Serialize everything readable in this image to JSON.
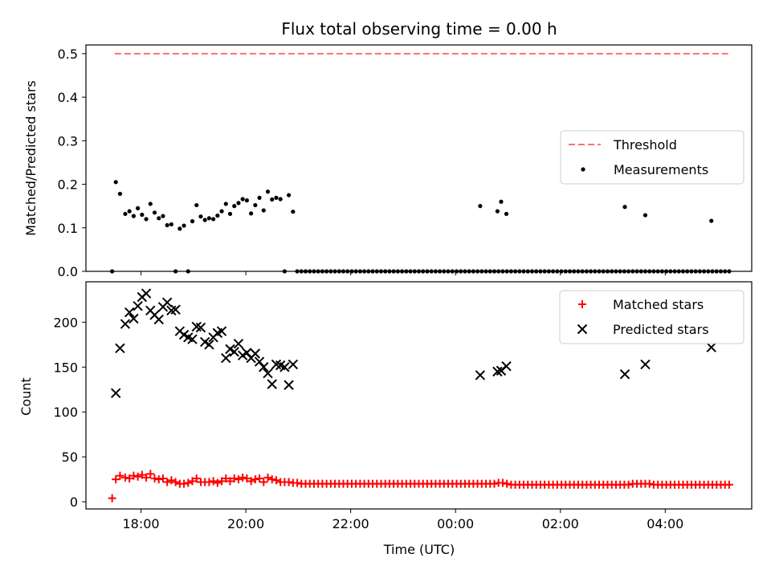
{
  "chart_data": [
    {
      "type": "scatter",
      "title": "Flux total observing time = 0.00 h",
      "xlabel": "",
      "ylabel": "Matched/Predicted stars",
      "xlim": [
        16.95,
        29.65
      ],
      "ylim": [
        0,
        0.52
      ],
      "yticks": [
        0,
        0.1,
        0.2,
        0.3,
        0.4,
        0.5
      ],
      "ytick_labels": [
        "0.0",
        "0.1",
        "0.2",
        "0.3",
        "0.4",
        "0.5"
      ],
      "legend": "center-right",
      "series": [
        {
          "name": "Threshold",
          "kind": "dashed-line",
          "color": "#ff7070",
          "x": [
            17.5,
            29.2
          ],
          "y": [
            0.5,
            0.5
          ]
        },
        {
          "name": "Measurements",
          "kind": "dot",
          "color": "#000000",
          "x": [
            17.45,
            17.52,
            17.6,
            17.7,
            17.78,
            17.86,
            17.94,
            18.02,
            18.1,
            18.18,
            18.26,
            18.34,
            18.42,
            18.5,
            18.58,
            18.66,
            18.74,
            18.82,
            18.9,
            18.98,
            19.06,
            19.14,
            19.22,
            19.3,
            19.38,
            19.46,
            19.54,
            19.62,
            19.7,
            19.78,
            19.86,
            19.94,
            20.02,
            20.1,
            20.18,
            20.26,
            20.34,
            20.42,
            20.5,
            20.58,
            20.66,
            20.74,
            20.82,
            20.9,
            20.98,
            21.06,
            21.14,
            21.22,
            21.3,
            21.38,
            21.46,
            21.54,
            21.62,
            21.7,
            21.78,
            21.86,
            21.94,
            22.02,
            22.1,
            22.18,
            22.26,
            22.34,
            22.42,
            22.5,
            22.58,
            22.66,
            22.74,
            22.82,
            22.9,
            22.98,
            23.06,
            23.14,
            23.22,
            23.3,
            23.38,
            23.46,
            23.54,
            23.62,
            23.7,
            23.78,
            23.86,
            23.94,
            24.02,
            24.1,
            24.18,
            24.26,
            24.34,
            24.42,
            24.5,
            24.58,
            24.66,
            24.74,
            24.82,
            24.9,
            24.98,
            25.06,
            25.14,
            25.22,
            25.3,
            25.38,
            25.46,
            25.54,
            25.62,
            25.7,
            25.78,
            25.86,
            25.94,
            26.02,
            26.1,
            26.18,
            26.26,
            26.34,
            26.42,
            26.5,
            26.58,
            26.66,
            26.74,
            26.82,
            26.9,
            26.98,
            27.06,
            27.14,
            27.22,
            27.3,
            27.38,
            27.46,
            27.54,
            27.62,
            27.7,
            27.78,
            27.86,
            27.94,
            28.02,
            28.1,
            28.18,
            28.26,
            28.34,
            28.42,
            28.5,
            28.58,
            28.66,
            28.74,
            28.82,
            28.9,
            28.98,
            29.06,
            29.14,
            29.22,
            24.47,
            24.8,
            24.87,
            24.97,
            27.23,
            27.62,
            28.88
          ],
          "y": [
            0.0,
            0.205,
            0.178,
            0.132,
            0.138,
            0.127,
            0.145,
            0.13,
            0.12,
            0.155,
            0.135,
            0.122,
            0.127,
            0.106,
            0.108,
            0.0,
            0.098,
            0.105,
            0.0,
            0.115,
            0.152,
            0.126,
            0.118,
            0.122,
            0.12,
            0.128,
            0.138,
            0.155,
            0.132,
            0.15,
            0.157,
            0.166,
            0.163,
            0.133,
            0.152,
            0.169,
            0.14,
            0.183,
            0.165,
            0.169,
            0.166,
            0.0,
            0.175,
            0.137,
            0.0,
            0.0,
            0.0,
            0.0,
            0.0,
            0.0,
            0.0,
            0.0,
            0.0,
            0.0,
            0.0,
            0.0,
            0.0,
            0.0,
            0.0,
            0.0,
            0.0,
            0.0,
            0.0,
            0.0,
            0.0,
            0.0,
            0.0,
            0.0,
            0.0,
            0.0,
            0.0,
            0.0,
            0.0,
            0.0,
            0.0,
            0.0,
            0.0,
            0.0,
            0.0,
            0.0,
            0.0,
            0.0,
            0.0,
            0.0,
            0.0,
            0.0,
            0.0,
            0.0,
            0.0,
            0.0,
            0.0,
            0.0,
            0.0,
            0.0,
            0.0,
            0.0,
            0.0,
            0.0,
            0.0,
            0.0,
            0.0,
            0.0,
            0.0,
            0.0,
            0.0,
            0.0,
            0.0,
            0.0,
            0.0,
            0.0,
            0.0,
            0.0,
            0.0,
            0.0,
            0.0,
            0.0,
            0.0,
            0.0,
            0.0,
            0.0,
            0.0,
            0.0,
            0.0,
            0.0,
            0.0,
            0.0,
            0.0,
            0.0,
            0.0,
            0.0,
            0.0,
            0.0,
            0.0,
            0.0,
            0.0,
            0.0,
            0.0,
            0.0,
            0.0,
            0.0,
            0.0,
            0.0,
            0.0,
            0.0,
            0.0,
            0.0,
            0.0,
            0.0,
            0.15,
            0.138,
            0.16,
            0.132,
            0.148,
            0.129,
            0.116
          ]
        }
      ]
    },
    {
      "type": "scatter",
      "title": "",
      "xlabel": "Time (UTC)",
      "ylabel": "Count",
      "xlim": [
        16.95,
        29.65
      ],
      "ylim": [
        -8,
        245
      ],
      "yticks": [
        0,
        50,
        100,
        150,
        200
      ],
      "ytick_labels": [
        "0",
        "50",
        "100",
        "150",
        "200"
      ],
      "xticks": [
        18,
        20,
        22,
        24,
        26,
        28
      ],
      "xtick_labels": [
        "18:00",
        "20:00",
        "22:00",
        "00:00",
        "02:00",
        "04:00"
      ],
      "legend": "top-right",
      "series": [
        {
          "name": "Matched stars",
          "kind": "plus",
          "color": "#ff0000",
          "x": [
            17.45,
            17.52,
            17.6,
            17.7,
            17.78,
            17.86,
            17.94,
            18.02,
            18.1,
            18.18,
            18.26,
            18.34,
            18.42,
            18.5,
            18.58,
            18.66,
            18.74,
            18.82,
            18.9,
            18.98,
            19.06,
            19.14,
            19.22,
            19.3,
            19.38,
            19.46,
            19.54,
            19.62,
            19.7,
            19.78,
            19.86,
            19.94,
            20.02,
            20.1,
            20.18,
            20.26,
            20.34,
            20.42,
            20.5,
            20.58,
            20.66,
            20.74,
            20.82,
            20.9,
            20.98,
            21.06,
            21.14,
            21.22,
            21.3,
            21.38,
            21.46,
            21.54,
            21.62,
            21.7,
            21.78,
            21.86,
            21.94,
            22.02,
            22.1,
            22.18,
            22.26,
            22.34,
            22.42,
            22.5,
            22.58,
            22.66,
            22.74,
            22.82,
            22.9,
            22.98,
            23.06,
            23.14,
            23.22,
            23.3,
            23.38,
            23.46,
            23.54,
            23.62,
            23.7,
            23.78,
            23.86,
            23.94,
            24.02,
            24.1,
            24.18,
            24.26,
            24.34,
            24.42,
            24.5,
            24.58,
            24.66,
            24.74,
            24.82,
            24.9,
            24.98,
            25.06,
            25.14,
            25.22,
            25.3,
            25.38,
            25.46,
            25.54,
            25.62,
            25.7,
            25.78,
            25.86,
            25.94,
            26.02,
            26.1,
            26.18,
            26.26,
            26.34,
            26.42,
            26.5,
            26.58,
            26.66,
            26.74,
            26.82,
            26.9,
            26.98,
            27.06,
            27.14,
            27.22,
            27.3,
            27.38,
            27.46,
            27.54,
            27.62,
            27.7,
            27.78,
            27.86,
            27.94,
            28.02,
            28.1,
            28.18,
            28.26,
            28.34,
            28.42,
            28.5,
            28.58,
            28.66,
            28.74,
            28.82,
            28.9,
            28.98,
            29.06,
            29.14,
            29.22
          ],
          "y": [
            4,
            25,
            29,
            27,
            26,
            29,
            28,
            30,
            27,
            31,
            26,
            25,
            26,
            22,
            24,
            22,
            20,
            20,
            21,
            23,
            26,
            22,
            22,
            22,
            23,
            21,
            23,
            26,
            23,
            26,
            25,
            27,
            26,
            23,
            25,
            26,
            22,
            27,
            25,
            24,
            22,
            22,
            22,
            21,
            21,
            20,
            20,
            20,
            20,
            20,
            20,
            20,
            20,
            20,
            20,
            20,
            20,
            20,
            20,
            20,
            20,
            20,
            20,
            20,
            20,
            20,
            20,
            20,
            20,
            20,
            20,
            20,
            20,
            20,
            20,
            20,
            20,
            20,
            20,
            20,
            20,
            20,
            20,
            20,
            20,
            20,
            20,
            20,
            20,
            20,
            20,
            20,
            21,
            21,
            20,
            19,
            19,
            19,
            19,
            19,
            19,
            19,
            19,
            19,
            19,
            19,
            19,
            19,
            19,
            19,
            19,
            19,
            19,
            19,
            19,
            19,
            19,
            19,
            19,
            19,
            19,
            19,
            19,
            19,
            20,
            20,
            20,
            20,
            20,
            19,
            19,
            19,
            19,
            19,
            19,
            19,
            19,
            19,
            19,
            19,
            19,
            19,
            19,
            19,
            19,
            19,
            19,
            19
          ]
        },
        {
          "name": "Predicted stars",
          "kind": "cross",
          "color": "#000000",
          "x": [
            17.52,
            17.6,
            17.7,
            17.78,
            17.86,
            17.94,
            18.02,
            18.1,
            18.18,
            18.26,
            18.34,
            18.42,
            18.5,
            18.58,
            18.66,
            18.74,
            18.82,
            18.9,
            18.98,
            19.06,
            19.14,
            19.22,
            19.3,
            19.38,
            19.46,
            19.54,
            19.62,
            19.7,
            19.78,
            19.86,
            19.94,
            20.02,
            20.1,
            20.18,
            20.26,
            20.34,
            20.42,
            20.5,
            20.58,
            20.66,
            20.74,
            20.82,
            20.9,
            24.47,
            24.8,
            24.87,
            24.97,
            27.23,
            27.62,
            28.88
          ],
          "y": [
            121,
            171,
            198,
            211,
            204,
            218,
            228,
            232,
            213,
            208,
            203,
            217,
            222,
            213,
            214,
            190,
            186,
            183,
            181,
            195,
            194,
            178,
            175,
            183,
            188,
            190,
            160,
            170,
            167,
            176,
            163,
            166,
            160,
            165,
            156,
            150,
            143,
            131,
            153,
            152,
            150,
            130,
            153,
            141,
            145,
            146,
            151,
            142,
            153,
            172
          ]
        }
      ]
    }
  ]
}
